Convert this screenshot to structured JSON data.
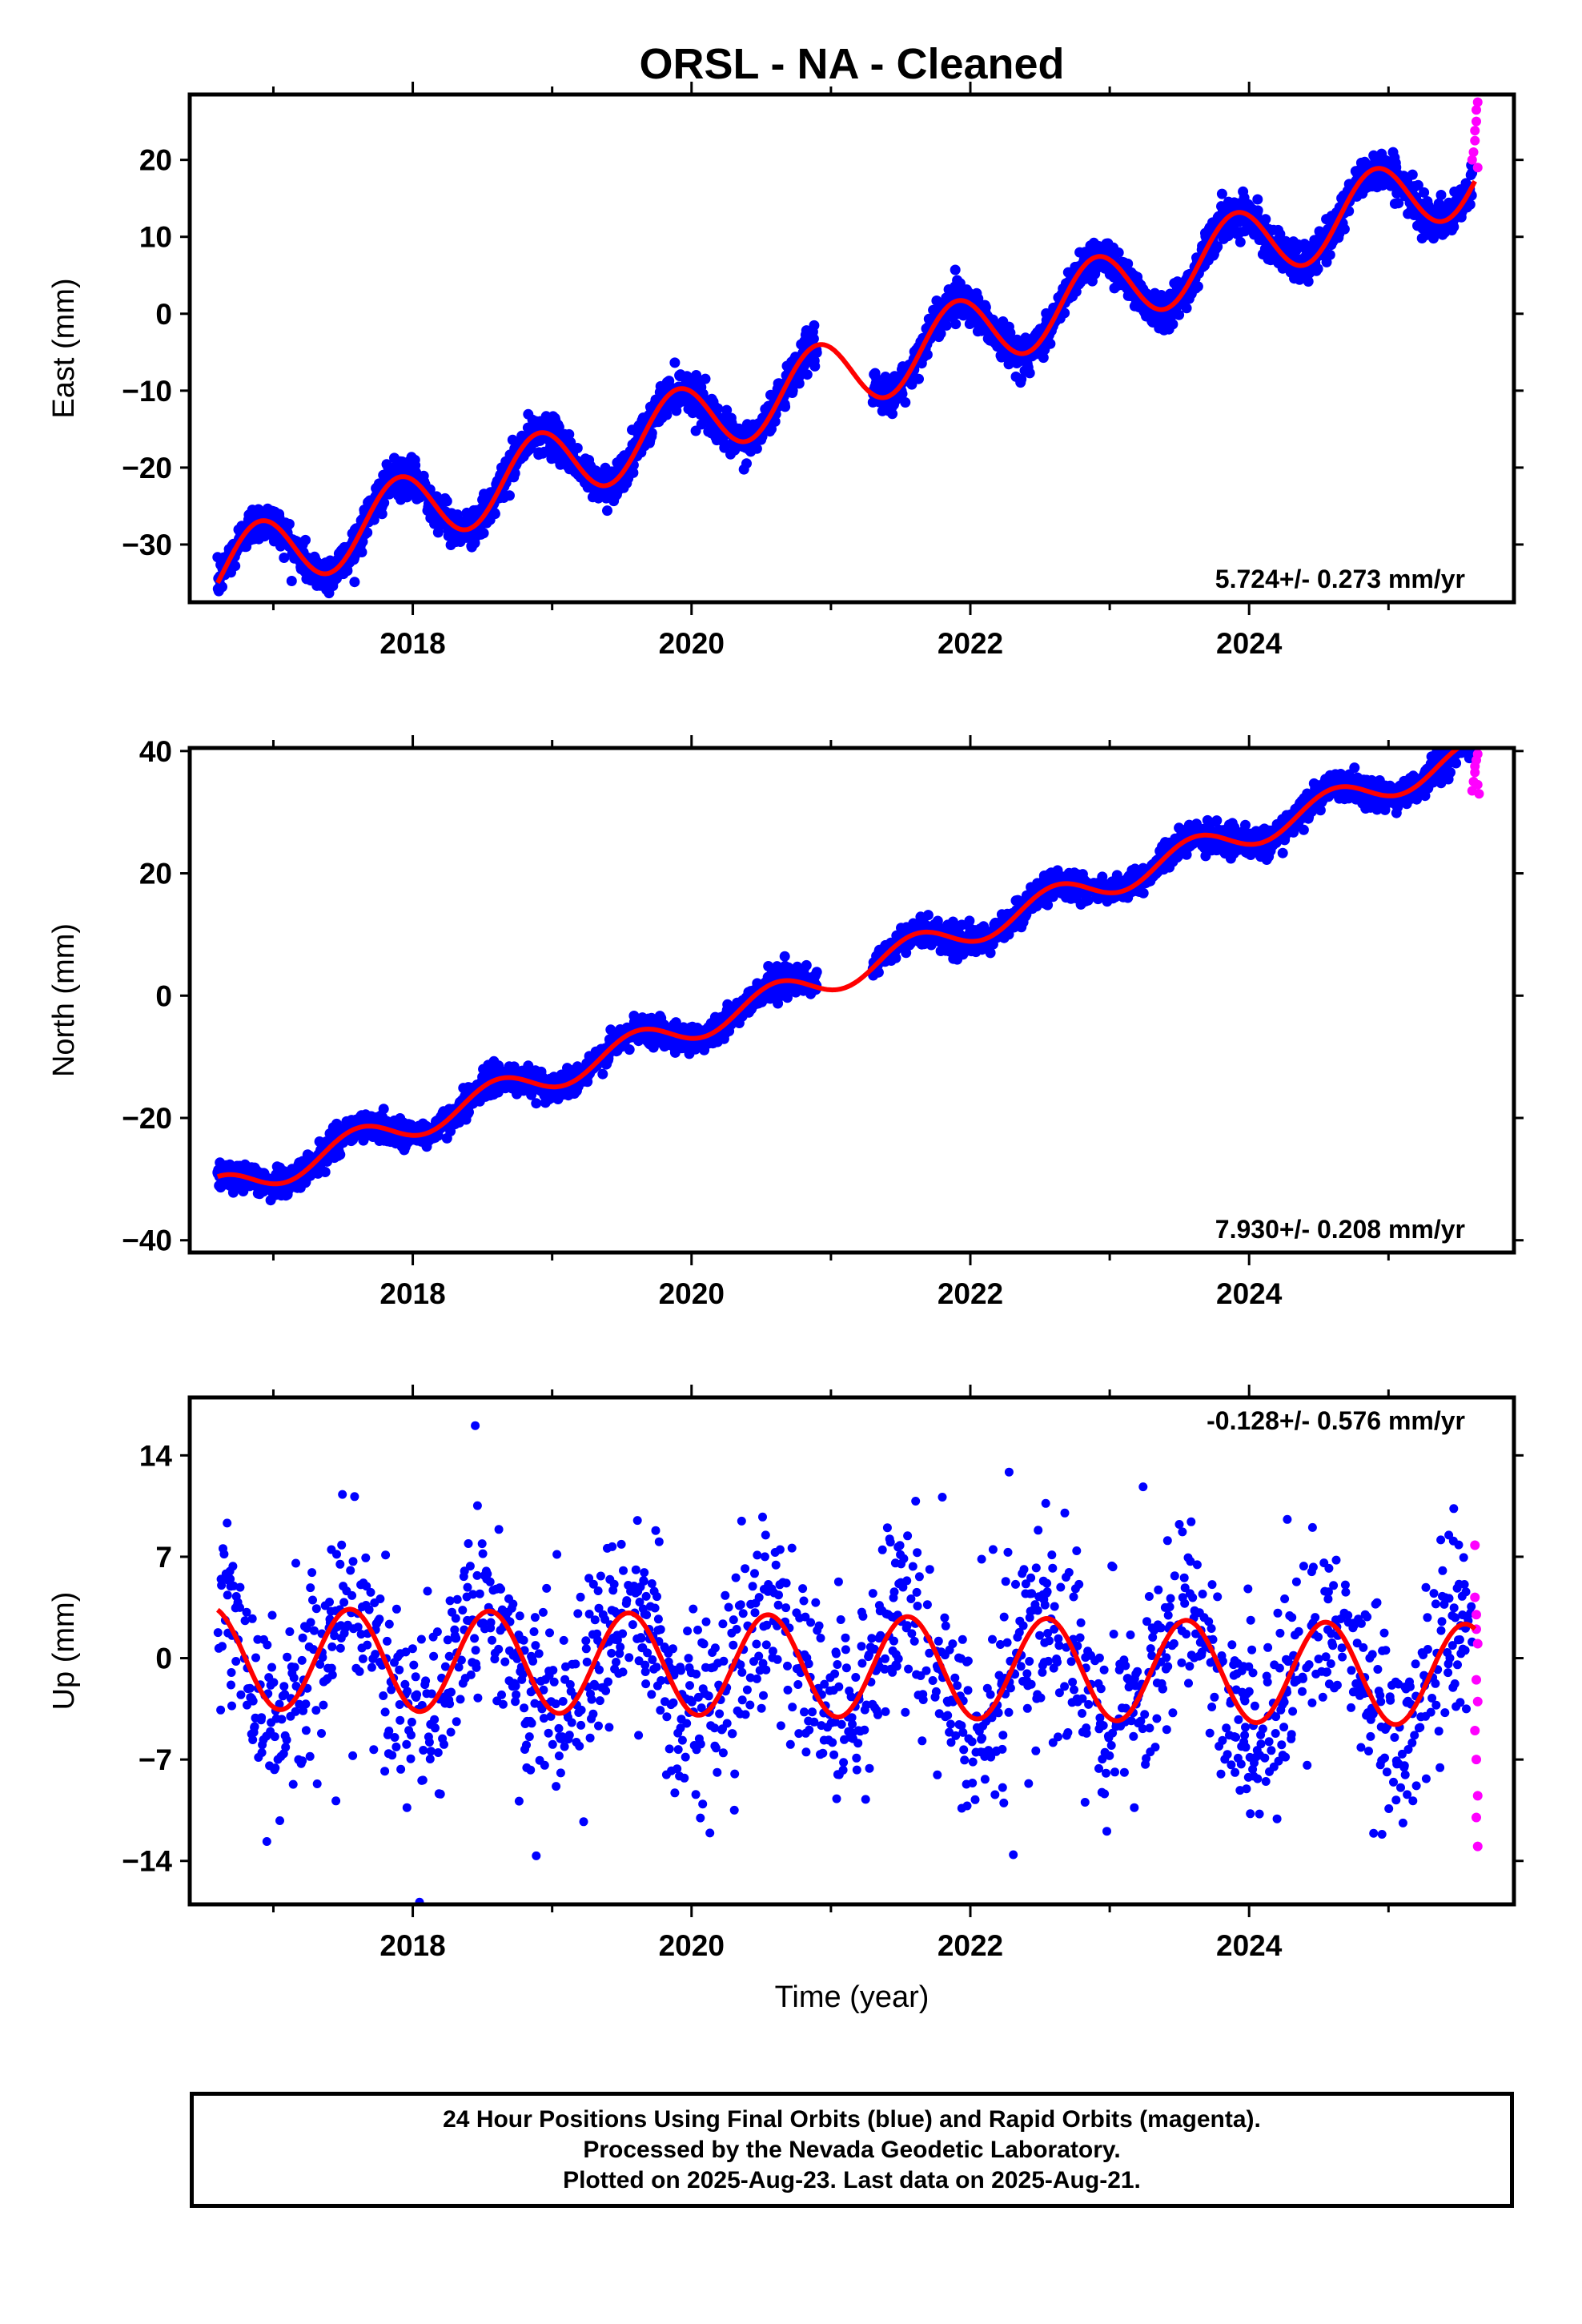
{
  "chart_data": {
    "type": "scatter",
    "title": "ORSL  - NA - Cleaned",
    "colors": {
      "final_orbits": "#0000ff",
      "rapid_orbits": "#ff00ff",
      "fit": "#ff0000"
    },
    "x_ticks": [
      "2018",
      "2020",
      "2022",
      "2024"
    ],
    "xlabel": "Time (year)",
    "xlim": [
      2016.4,
      2025.9
    ],
    "panels": [
      {
        "name": "East",
        "ylabel": "East (mm)",
        "ylim": [
          -37.5,
          28.5
        ],
        "yticks": [
          {
            "v": 20,
            "t": "20"
          },
          {
            "v": 10,
            "t": "10"
          },
          {
            "v": 0,
            "t": "0"
          },
          {
            "v": -10,
            "t": "−10"
          },
          {
            "v": -20,
            "t": "−20"
          },
          {
            "v": -30,
            "t": "−30"
          }
        ],
        "rate": "5.724+/- 0.273 mm/yr",
        "rate_position": "bottom-right",
        "fit": {
          "trend_at_2016_6": -33.5,
          "slope": 5.724,
          "amplitude": 4.8,
          "phase_year": 2016.9
        },
        "scatter": {
          "trend_at_2016_6": -33.5,
          "slope": 5.724,
          "amplitude": 4.8,
          "phase_year": 2016.9,
          "noise": 1.2
        },
        "rapid": [
          [
            2025.6,
            20.0
          ],
          [
            2025.61,
            21.0
          ],
          [
            2025.62,
            22.5
          ],
          [
            2025.62,
            23.8
          ],
          [
            2025.63,
            25.0
          ],
          [
            2025.63,
            26.5
          ],
          [
            2025.64,
            27.5
          ],
          [
            2025.64,
            19.0
          ]
        ]
      },
      {
        "name": "North",
        "ylabel": "North (mm)",
        "ylim": [
          -42,
          40.5
        ],
        "yticks": [
          {
            "v": 40,
            "t": "40"
          },
          {
            "v": 20,
            "t": "20"
          },
          {
            "v": 0,
            "t": "0"
          },
          {
            "v": -20,
            "t": "−20"
          },
          {
            "v": -40,
            "t": "−40"
          }
        ],
        "rate": "7.930+/- 0.208 mm/yr",
        "rate_position": "bottom-right",
        "fit": {
          "trend_at_2016_6": -32.0,
          "slope": 7.93,
          "amplitude": 2.4,
          "phase_year": 2016.6
        },
        "scatter": {
          "trend_at_2016_6": -32.0,
          "slope": 7.93,
          "amplitude": 2.4,
          "phase_year": 2016.6,
          "noise": 1.1
        },
        "rapid": [
          [
            2025.6,
            33.5
          ],
          [
            2025.61,
            35.0
          ],
          [
            2025.62,
            36.5
          ],
          [
            2025.62,
            37.5
          ],
          [
            2025.63,
            38.5
          ],
          [
            2025.64,
            39.5
          ],
          [
            2025.64,
            34.5
          ],
          [
            2025.65,
            33.0
          ]
        ]
      },
      {
        "name": "Up",
        "ylabel": "Up (mm)",
        "ylim": [
          -17,
          18
        ],
        "yticks": [
          {
            "v": 14,
            "t": "14"
          },
          {
            "v": 7,
            "t": "7"
          },
          {
            "v": 0,
            "t": "0"
          },
          {
            "v": -7,
            "t": "−7"
          },
          {
            "v": -14,
            "t": "−14"
          }
        ],
        "rate": "-0.128+/- 0.576 mm/yr",
        "rate_position": "top-right",
        "fit": {
          "trend_at_2016_6": 0.0,
          "slope": -0.128,
          "amplitude": 3.5,
          "phase_year": 2016.55
        },
        "scatter": {
          "trend_at_2016_6": 0.0,
          "slope": -0.128,
          "amplitude": 3.5,
          "phase_year": 2016.55,
          "noise": 3.2
        },
        "rapid": [
          [
            2025.62,
            7.8
          ],
          [
            2025.62,
            4.2
          ],
          [
            2025.63,
            3.0
          ],
          [
            2025.63,
            2.0
          ],
          [
            2025.64,
            1.0
          ],
          [
            2025.63,
            -1.5
          ],
          [
            2025.64,
            -3.0
          ],
          [
            2025.62,
            -5.0
          ],
          [
            2025.63,
            -7.0
          ],
          [
            2025.64,
            -9.5
          ],
          [
            2025.63,
            -11.0
          ],
          [
            2025.64,
            -13.0
          ]
        ]
      }
    ]
  },
  "footer": {
    "line1": "24 Hour Positions Using Final Orbits (blue) and Rapid Orbits (magenta).",
    "line2": "Processed by the Nevada Geodetic Laboratory.",
    "line3": "Plotted on 2025-Aug-23. Last data on 2025-Aug-21."
  }
}
